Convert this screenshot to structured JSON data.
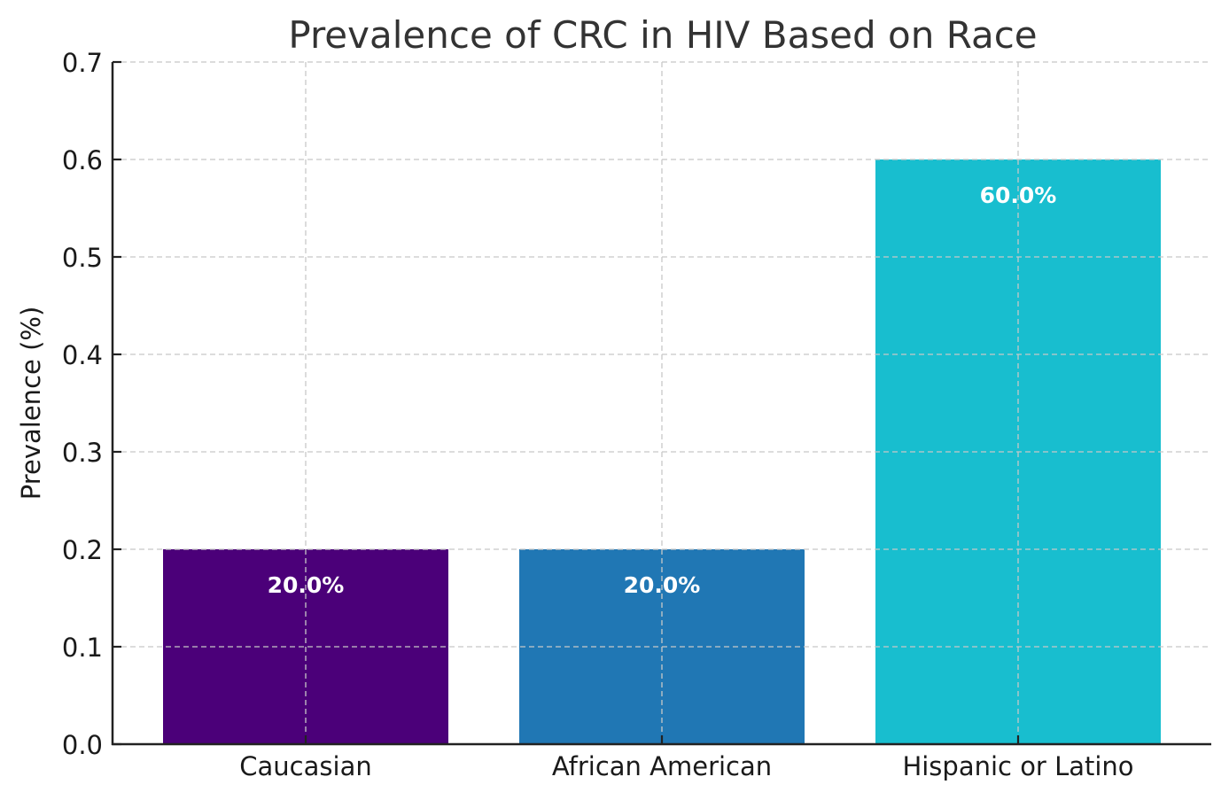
{
  "chart_data": {
    "type": "bar",
    "title": "Prevalence of CRC in HIV Based on Race",
    "xlabel": "",
    "ylabel": "Prevalence (%)",
    "categories": [
      "Caucasian",
      "African American",
      "Hispanic or Latino"
    ],
    "values": [
      0.2,
      0.2,
      0.6
    ],
    "data_labels": [
      "20.0%",
      "20.0%",
      "60.0%"
    ],
    "colors": [
      "#4b0079",
      "#2077b4",
      "#18becf"
    ],
    "ylim": [
      0,
      0.7
    ],
    "yticks": [
      0.0,
      0.1,
      0.2,
      0.3,
      0.4,
      0.5,
      0.6,
      0.7
    ],
    "ytick_labels": [
      "0.0",
      "0.1",
      "0.2",
      "0.3",
      "0.4",
      "0.5",
      "0.6",
      "0.7"
    ],
    "grid": true,
    "legend": null
  }
}
